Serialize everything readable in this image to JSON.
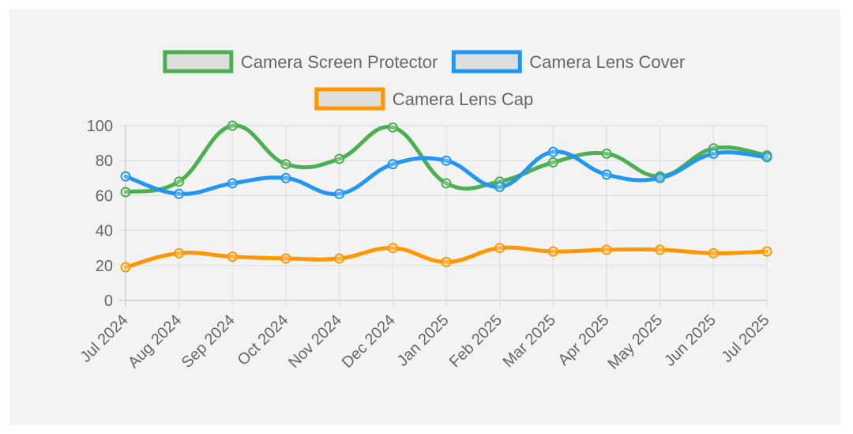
{
  "chart_data": {
    "type": "line",
    "categories": [
      "Jul 2024",
      "Aug 2024",
      "Sep 2024",
      "Oct 2024",
      "Nov 2024",
      "Dec 2024",
      "Jan 2025",
      "Feb 2025",
      "Mar 2025",
      "Apr 2025",
      "May 2025",
      "Jun 2025",
      "Jul 2025"
    ],
    "series": [
      {
        "name": "Camera Screen Protector",
        "color": "#4caf50",
        "values": [
          62,
          68,
          100,
          78,
          81,
          99,
          67,
          68,
          79,
          84,
          71,
          87,
          83
        ]
      },
      {
        "name": "Camera Lens Cover",
        "color": "#2196f3",
        "values": [
          71,
          61,
          67,
          70,
          61,
          78,
          80,
          65,
          85,
          72,
          70,
          84,
          82
        ]
      },
      {
        "name": "Camera Lens Cap",
        "color": "#ff9800",
        "values": [
          19,
          27,
          25,
          24,
          24,
          30,
          22,
          30,
          28,
          29,
          29,
          27,
          28
        ]
      }
    ],
    "ylim": [
      0,
      100
    ],
    "yticks": [
      0,
      20,
      40,
      60,
      80,
      100
    ],
    "grid": true,
    "legend_position": "top",
    "title": "",
    "xlabel": "",
    "ylabel": ""
  }
}
